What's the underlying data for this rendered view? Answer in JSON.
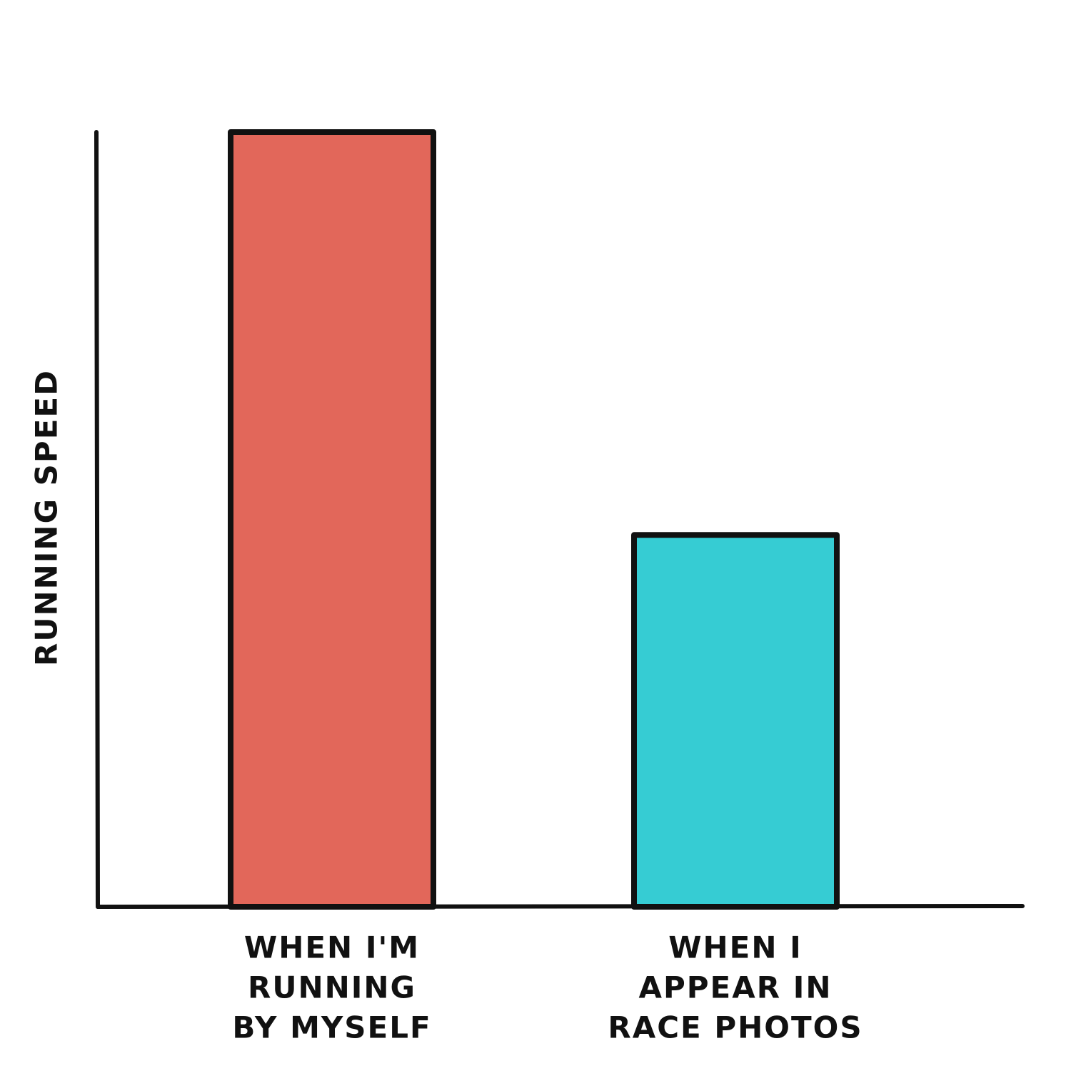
{
  "chart_data": {
    "type": "bar",
    "ylabel": "RUNNING SPEED",
    "categories": [
      [
        "WHEN I'M",
        "RUNNING",
        "BY MYSELF"
      ],
      [
        "WHEN I",
        "APPEAR IN",
        "RACE PHOTOS"
      ]
    ],
    "values": [
      100,
      48
    ],
    "colors": [
      "#e2675a",
      "#36ccd3"
    ],
    "ylim": [
      0,
      100
    ]
  }
}
